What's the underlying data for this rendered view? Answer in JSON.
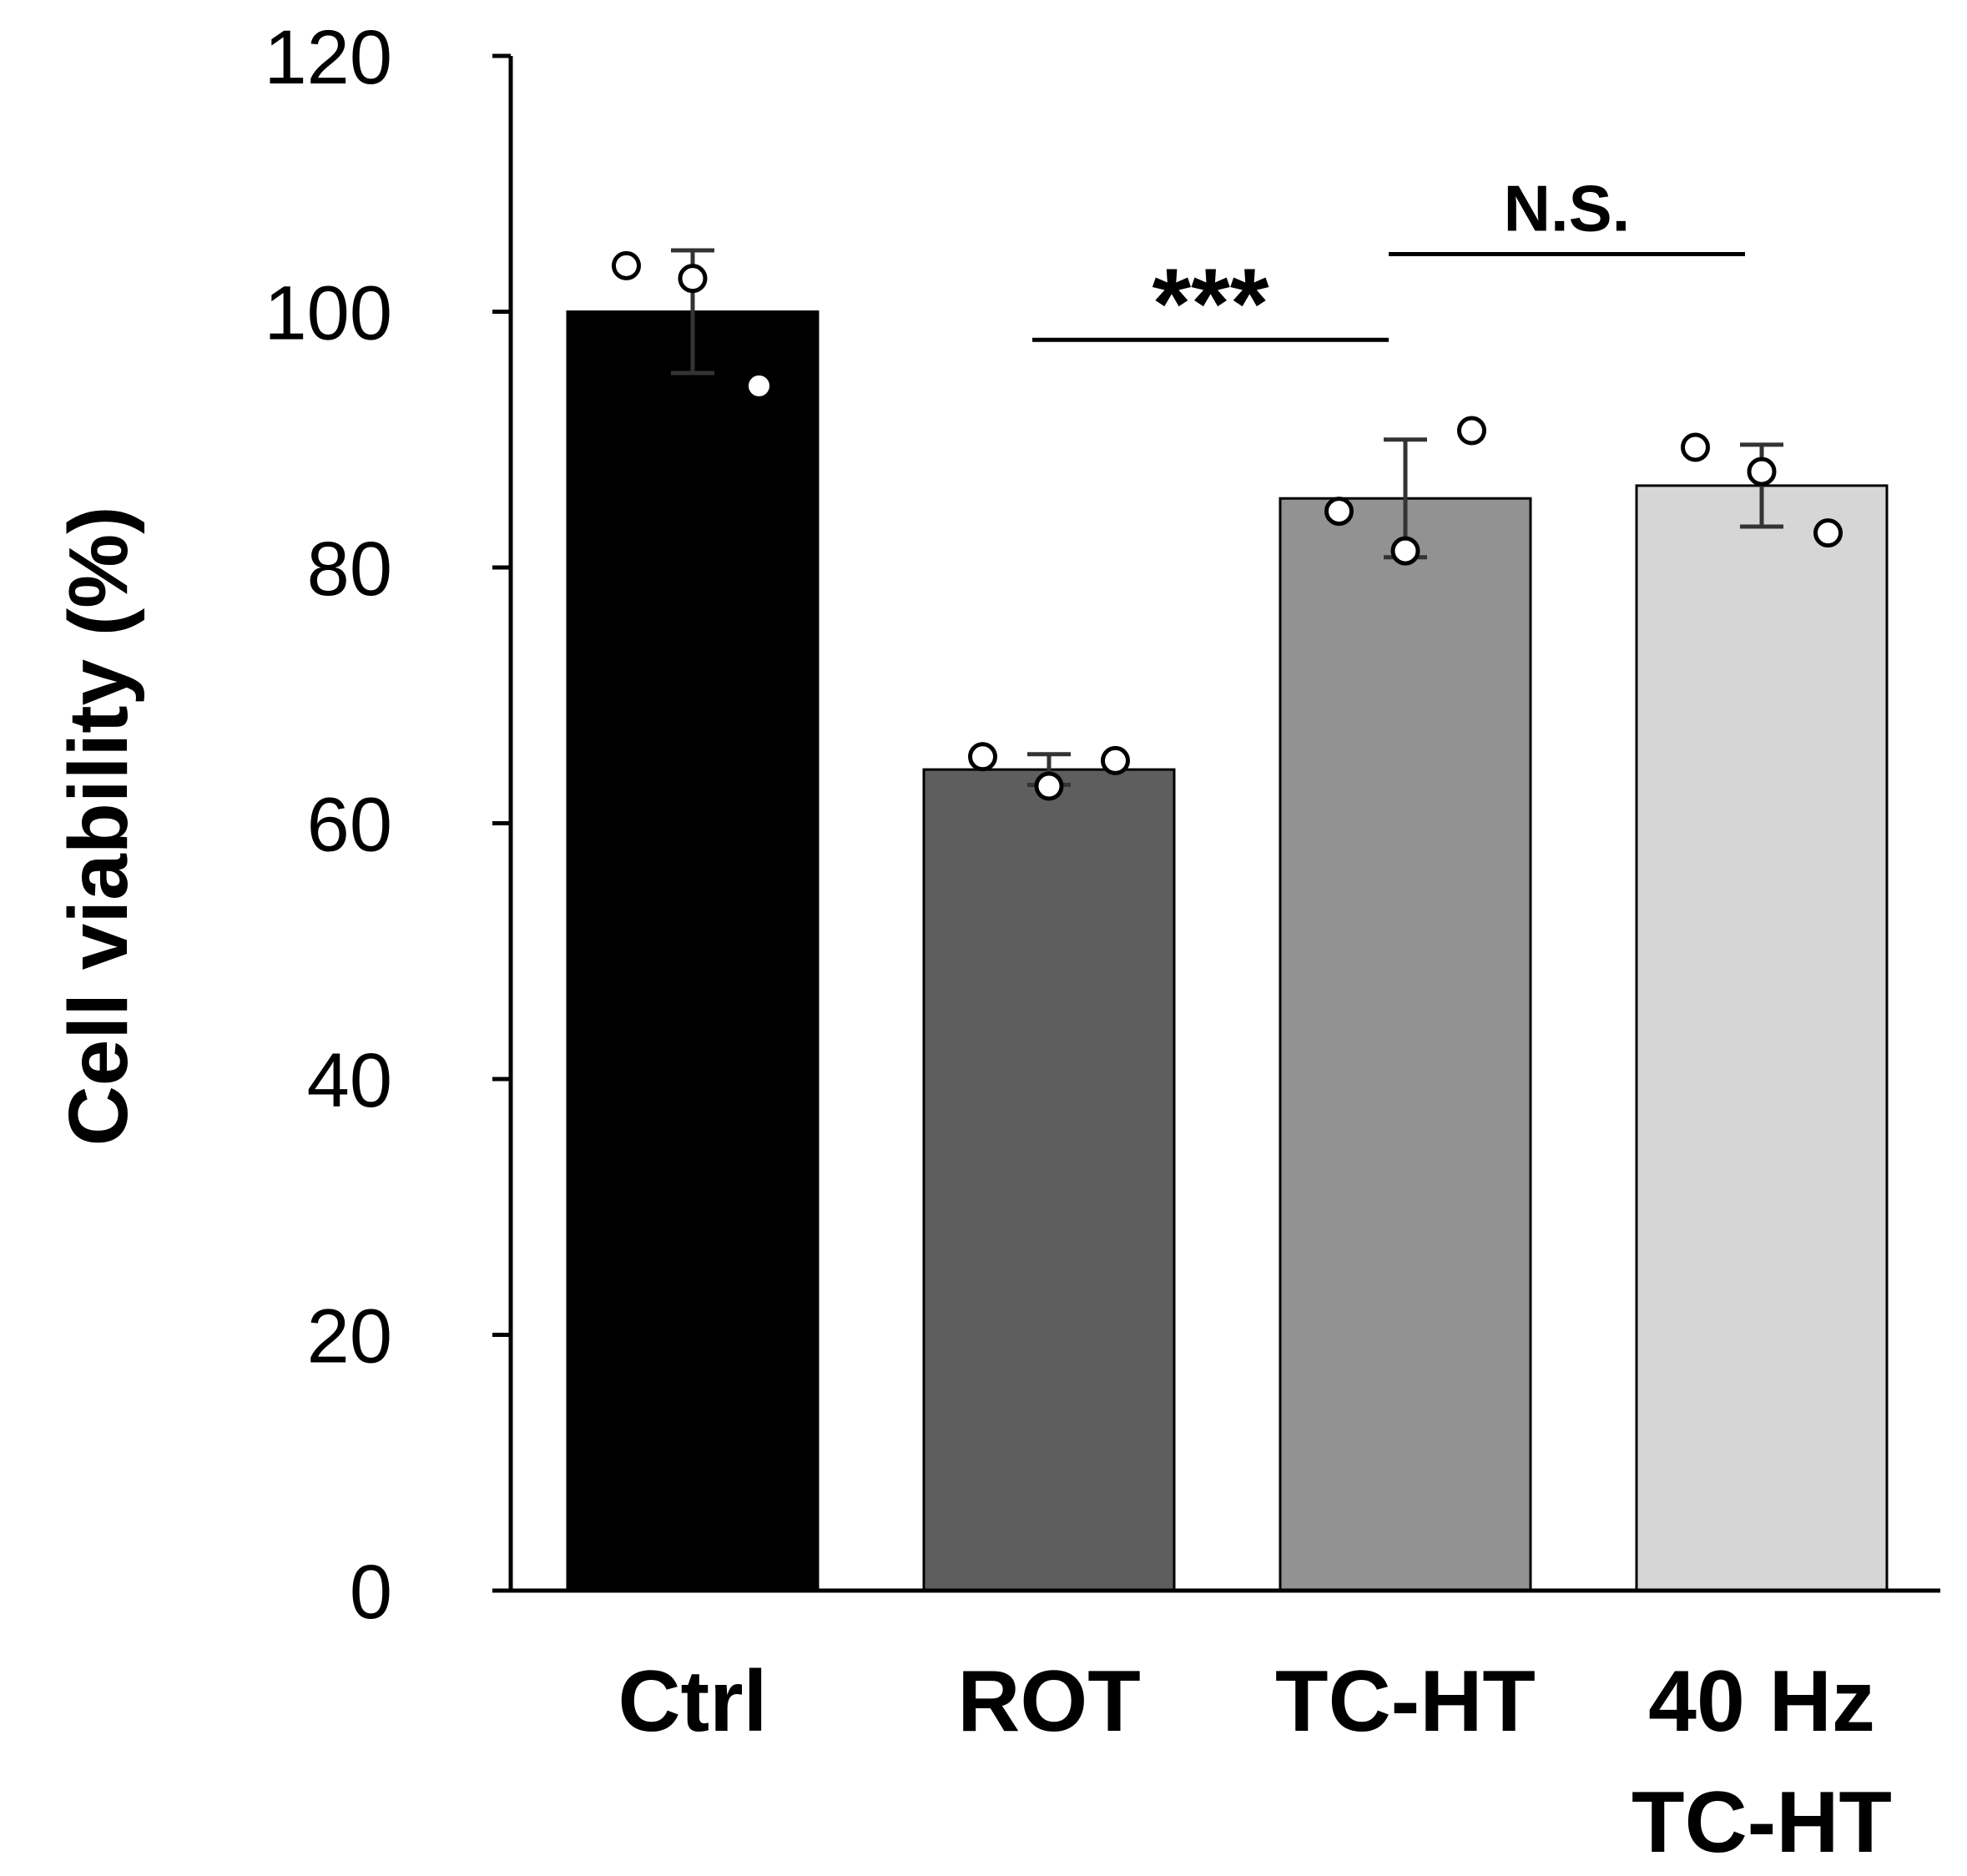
{
  "chart_data": {
    "type": "bar",
    "title": "",
    "xlabel": "",
    "ylabel": "Cell viability (%)",
    "ylim": [
      0,
      120
    ],
    "yticks": [
      0,
      20,
      40,
      60,
      80,
      100,
      120
    ],
    "categories": [
      {
        "lines": [
          "Ctrl"
        ]
      },
      {
        "lines": [
          "ROT"
        ]
      },
      {
        "lines": [
          "TC-HT"
        ]
      },
      {
        "lines": [
          "40 Hz",
          "TC-HT"
        ]
      }
    ],
    "values": [
      100,
      64.2,
      85.4,
      86.4
    ],
    "errors": [
      4.8,
      1.2,
      4.6,
      3.2
    ],
    "colors": [
      "#000000",
      "#5e5e5e",
      "#929292",
      "#d6d6d6"
    ],
    "points": [
      [
        {
          "o": -0.53,
          "v": 103.6
        },
        {
          "o": 0.0,
          "v": 102.6
        },
        {
          "o": 0.53,
          "v": 94.2
        }
      ],
      [
        {
          "o": -0.53,
          "v": 65.2
        },
        {
          "o": 0.0,
          "v": 62.9
        },
        {
          "o": 0.53,
          "v": 64.9
        }
      ],
      [
        {
          "o": -0.53,
          "v": 84.4
        },
        {
          "o": 0.0,
          "v": 81.3
        },
        {
          "o": 0.53,
          "v": 90.7
        }
      ],
      [
        {
          "o": -0.53,
          "v": 89.4
        },
        {
          "o": 0.0,
          "v": 87.5
        },
        {
          "o": 0.53,
          "v": 82.7
        }
      ]
    ],
    "significance": [
      {
        "from": 1,
        "to": 2,
        "label": "***",
        "line_value": 97.8
      },
      {
        "from": 2,
        "to": 3,
        "label": "N.S.",
        "line_value": 104.5
      }
    ]
  }
}
